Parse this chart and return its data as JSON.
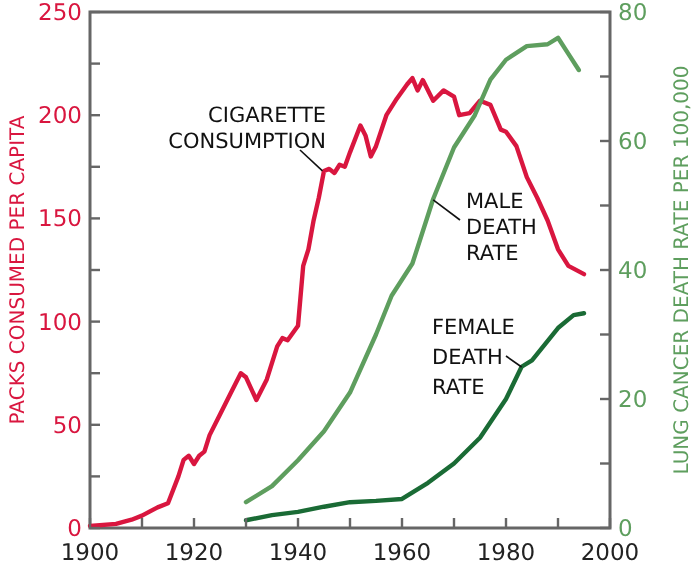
{
  "chart_data": {
    "type": "line",
    "xlabel": null,
    "ylabel": "PACKS CONSUMED PER CAPITA",
    "y2label": "LUNG CANCER DEATH RATE PER 100,000",
    "xlim": [
      1900,
      2000
    ],
    "xticks": [
      1900,
      {
        "value": 1910,
        "label": null
      },
      1920,
      {
        "value": 1930,
        "label": null
      },
      1940,
      {
        "value": 1950,
        "label": null
      },
      1960,
      {
        "value": 1970,
        "label": null
      },
      1980,
      {
        "value": 1990,
        "label": null
      },
      2000
    ],
    "ylim": [
      0,
      250
    ],
    "yticks": [
      0,
      {
        "value": 25,
        "label": null
      },
      50,
      {
        "value": 75,
        "label": null
      },
      100,
      {
        "value": 125,
        "label": null
      },
      150,
      {
        "value": 175,
        "label": null
      },
      200,
      {
        "value": 225,
        "label": null
      },
      250
    ],
    "y2lim": [
      0,
      80
    ],
    "y2ticks": [
      0,
      {
        "value": 10,
        "label": null
      },
      20,
      {
        "value": 30,
        "label": null
      },
      40,
      {
        "value": 50,
        "label": null
      },
      60,
      {
        "value": 70,
        "label": null
      },
      80
    ],
    "grid": false,
    "marker": "none",
    "line_style": "solid",
    "series": [
      {
        "color": "#d9163f",
        "x": [
          1900,
          1905,
          1908,
          1910,
          1913,
          1915,
          1917,
          1918,
          1919,
          1920,
          1921,
          1922,
          1923,
          1925,
          1927,
          1929,
          1930,
          1932,
          1934,
          1936,
          1937,
          1938,
          1940,
          1941,
          1942,
          1943,
          1944,
          1945,
          1946,
          1947,
          1948,
          1949,
          1950,
          1952,
          1953,
          1954,
          1955,
          1957,
          1959,
          1961,
          1962,
          1963,
          1964,
          1966,
          1968,
          1970,
          1971,
          1973,
          1975,
          1977,
          1979,
          1980,
          1982,
          1984,
          1986,
          1988,
          1990,
          1992,
          1995
        ],
        "values": [
          1,
          2,
          4,
          6,
          10,
          12,
          25,
          33,
          35,
          31,
          35,
          37,
          45,
          55,
          65,
          75,
          73,
          62,
          72,
          88,
          92,
          91,
          98,
          127,
          135,
          149,
          160,
          173,
          174,
          172,
          176,
          175,
          182,
          195,
          190,
          180,
          185,
          200,
          208,
          215,
          218,
          212,
          217,
          207,
          212,
          209,
          200,
          201,
          207,
          205,
          193,
          192,
          185,
          170,
          160,
          149,
          135,
          127,
          123
        ]
      },
      {
        "color": "#5e9e5e",
        "axis": "y2",
        "x": [
          1930,
          1935,
          1940,
          1945,
          1950,
          1955,
          1958,
          1962,
          1966,
          1970,
          1974,
          1977,
          1980,
          1984,
          1988,
          1990,
          1992,
          1994
        ],
        "values": [
          4,
          6.5,
          10.5,
          15,
          21,
          30,
          36,
          41,
          51,
          59,
          64,
          69.5,
          72.6,
          74.7,
          75,
          76,
          73.5,
          71
        ]
      },
      {
        "color": "#1a6b35",
        "axis": "y2",
        "x": [
          1930,
          1935,
          1940,
          1945,
          1950,
          1955,
          1960,
          1965,
          1970,
          1975,
          1980,
          1983,
          1985,
          1990,
          1993,
          1995
        ],
        "values": [
          1.2,
          2,
          2.5,
          3.3,
          4,
          4.2,
          4.5,
          7,
          10,
          14,
          20,
          25,
          26,
          31,
          33,
          33.3
        ]
      }
    ],
    "annotations": [
      {
        "text": "CIGARETTE CONSUMPTION",
        "x": 1944.7,
        "y": 173
      },
      {
        "text": "MALE DEATH RATE",
        "x": 1966,
        "y": 159
      },
      {
        "text": "FEMALE DEATH RATE",
        "x": 1983,
        "y": 78
      }
    ]
  }
}
